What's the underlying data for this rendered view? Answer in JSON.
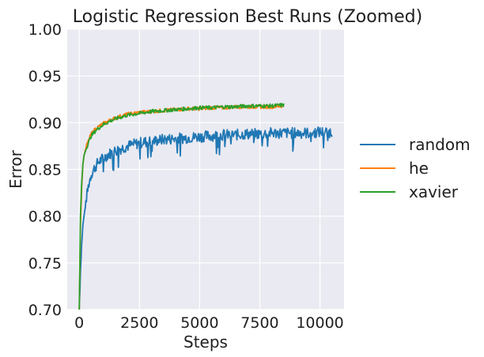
{
  "chart_data": {
    "type": "line",
    "title": "Logistic Regression Best Runs (Zoomed)",
    "xlabel": "Steps",
    "ylabel": "Error",
    "xlim": [
      -500,
      11000
    ],
    "ylim": [
      0.7,
      1.0
    ],
    "xticks": [
      0,
      2500,
      5000,
      7500,
      10000
    ],
    "xtick_labels": [
      "0",
      "2500",
      "5000",
      "7500",
      "10000"
    ],
    "yticks": [
      0.7,
      0.75,
      0.8,
      0.85,
      0.9,
      0.95,
      1.0
    ],
    "ytick_labels": [
      "0.70",
      "0.75",
      "0.80",
      "0.85",
      "0.90",
      "0.95",
      "1.00"
    ],
    "grid": true,
    "legend_position": "right-outside",
    "background": "#eaeaf2",
    "series": [
      {
        "name": "random",
        "color": "#1f77b4",
        "x": [
          0,
          50,
          100,
          150,
          200,
          300,
          400,
          500,
          600,
          800,
          1000,
          1200,
          1500,
          1800,
          2000,
          2300,
          2600,
          3000,
          3500,
          4000,
          4500,
          5000,
          5500,
          6000,
          6500,
          7000,
          7500,
          8000,
          8500,
          9000,
          9500,
          10000,
          10500
        ],
        "values": [
          0.7,
          0.74,
          0.77,
          0.79,
          0.8,
          0.82,
          0.835,
          0.845,
          0.85,
          0.858,
          0.862,
          0.866,
          0.87,
          0.873,
          0.875,
          0.877,
          0.879,
          0.88,
          0.882,
          0.883,
          0.884,
          0.885,
          0.886,
          0.887,
          0.887,
          0.888,
          0.888,
          0.889,
          0.889,
          0.889,
          0.889,
          0.89,
          0.89
        ],
        "noise": 0.006
      },
      {
        "name": "he",
        "color": "#ff7f0e",
        "x": [
          0,
          50,
          100,
          150,
          200,
          300,
          400,
          500,
          700,
          1000,
          1300,
          1600,
          2000,
          2500,
          3000,
          3500,
          4000,
          4500,
          5000,
          5500,
          6000,
          6500,
          7000,
          7500,
          8000,
          8500
        ],
        "values": [
          0.7,
          0.79,
          0.83,
          0.855,
          0.865,
          0.875,
          0.882,
          0.888,
          0.894,
          0.899,
          0.903,
          0.906,
          0.909,
          0.911,
          0.912,
          0.913,
          0.914,
          0.915,
          0.915,
          0.916,
          0.916,
          0.917,
          0.917,
          0.917,
          0.917,
          0.918
        ],
        "noise": 0.002
      },
      {
        "name": "xavier",
        "color": "#2ca02c",
        "x": [
          0,
          50,
          100,
          150,
          200,
          300,
          400,
          500,
          700,
          1000,
          1300,
          1600,
          2000,
          2500,
          3000,
          3500,
          4000,
          4500,
          5000,
          5500,
          6000,
          6500,
          7000,
          7500,
          8000,
          8500
        ],
        "values": [
          0.7,
          0.8,
          0.835,
          0.855,
          0.865,
          0.873,
          0.88,
          0.886,
          0.892,
          0.898,
          0.902,
          0.905,
          0.908,
          0.91,
          0.912,
          0.913,
          0.914,
          0.915,
          0.916,
          0.916,
          0.917,
          0.917,
          0.918,
          0.918,
          0.918,
          0.919
        ],
        "noise": 0.002
      }
    ]
  }
}
